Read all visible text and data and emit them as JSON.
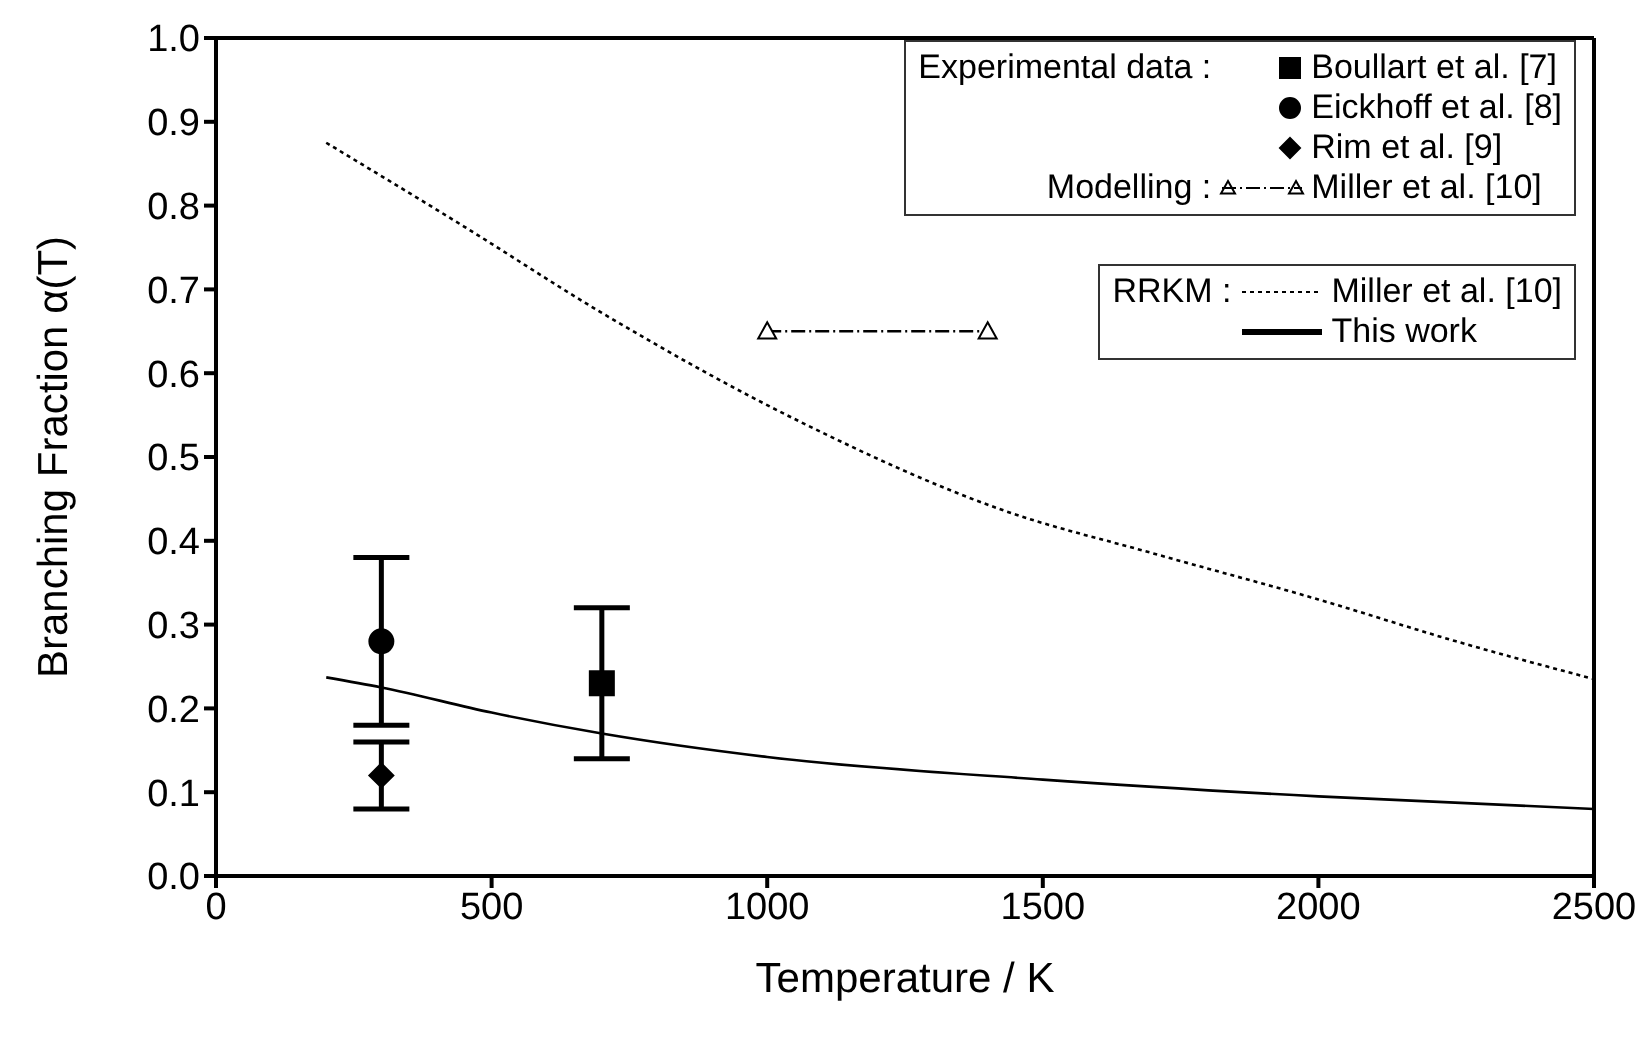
{
  "chart_data": {
    "type": "line",
    "xlabel": "Temperature / K",
    "ylabel": "Branching Fraction α(T)",
    "xlim": [
      0,
      2500
    ],
    "xticks": [
      0,
      500,
      1000,
      1500,
      2000,
      2500
    ],
    "ylim": [
      0,
      1
    ],
    "yticks": [
      {
        "value": 0,
        "label": "0.0"
      },
      {
        "value": 0.1,
        "label": "0.1"
      },
      {
        "value": 0.2,
        "label": "0.2"
      },
      {
        "value": 0.3,
        "label": "0.3"
      },
      {
        "value": 0.4,
        "label": "0.4"
      },
      {
        "value": 0.5,
        "label": "0.5"
      },
      {
        "value": 0.6,
        "label": "0.6"
      },
      {
        "value": 0.7,
        "label": "0.7"
      },
      {
        "value": 0.8,
        "label": "0.8"
      },
      {
        "value": 0.9,
        "label": "0.9"
      },
      {
        "value": 1,
        "label": "1.0"
      }
    ],
    "legend": "top right",
    "annotations": [
      "Experimental data :",
      "Modelling :",
      "RRKM :"
    ],
    "series": [
      {
        "name": "Boullart et al. [7]",
        "type": "scatter",
        "marker": "square",
        "color": "#000000",
        "x": [
          700
        ],
        "values": [
          0.23
        ],
        "errors": [
          [
            0.14,
            0.32
          ]
        ]
      },
      {
        "name": "Eickhoff et al. [8]",
        "type": "scatter",
        "marker": "circle",
        "color": "#000000",
        "x": [
          300
        ],
        "values": [
          0.28
        ],
        "errors": [
          [
            0.18,
            0.38
          ]
        ]
      },
      {
        "name": "Rim et al. [9]",
        "type": "scatter",
        "marker": "diamond",
        "color": "#000000",
        "x": [
          300
        ],
        "values": [
          0.12
        ],
        "errors": [
          [
            0.08,
            0.16
          ]
        ]
      },
      {
        "name": "Miller et al. [10]",
        "marker": "triangle",
        "line_style": "dashed",
        "color": "#000000",
        "x": [
          1000,
          1400
        ],
        "values": [
          0.65,
          0.65
        ]
      },
      {
        "name": "Miller et al. [10]",
        "marker": "none",
        "line_style": "dotted",
        "color": "#000000",
        "x": [
          200,
          450,
          700,
          1060,
          1430,
          1700,
          2000,
          2250,
          2500
        ],
        "values": [
          0.875,
          0.775,
          0.672,
          0.542,
          0.436,
          0.385,
          0.33,
          0.28,
          0.235
        ]
      },
      {
        "name": "This work",
        "marker": "none",
        "line_style": "solid",
        "color": "#000000",
        "x": [
          200,
          300,
          500,
          700,
          1000,
          1500,
          2000,
          2500
        ],
        "values": [
          0.237,
          0.225,
          0.195,
          0.17,
          0.142,
          0.115,
          0.095,
          0.08
        ]
      }
    ]
  }
}
